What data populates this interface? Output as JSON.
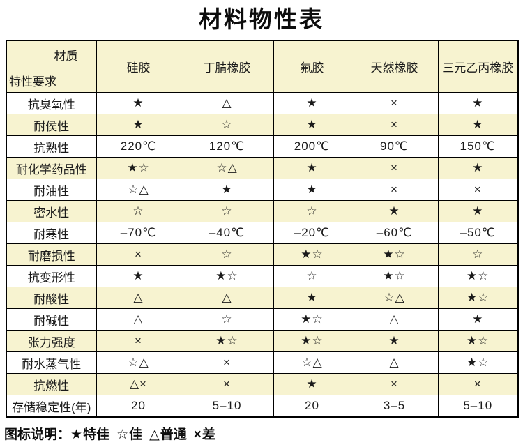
{
  "title": "材料物性表",
  "colors": {
    "row_alt_background": "#f7f3d0",
    "border": "#000000",
    "text": "#1a1a1a"
  },
  "table": {
    "corner": {
      "top_right": "材质",
      "bottom_left": "特性要求"
    },
    "columns": [
      "硅胶",
      "丁腈橡胶",
      "氟胶",
      "天然橡胶",
      "三元乙丙橡胶"
    ],
    "rows": [
      {
        "label": "抗臭氧性",
        "values": [
          "★",
          "△",
          "★",
          "×",
          "★"
        ]
      },
      {
        "label": "耐侯性",
        "values": [
          "★",
          "☆",
          "★",
          "×",
          "★"
        ]
      },
      {
        "label": "抗熟性",
        "values": [
          "220℃",
          "120℃",
          "200℃",
          "90℃",
          "150℃"
        ]
      },
      {
        "label": "耐化学药品性",
        "values": [
          "★☆",
          "☆△",
          "★",
          "×",
          "★"
        ]
      },
      {
        "label": "耐油性",
        "values": [
          "☆△",
          "★",
          "★",
          "×",
          "×"
        ]
      },
      {
        "label": "密水性",
        "values": [
          "☆",
          "☆",
          "☆",
          "★",
          "★"
        ]
      },
      {
        "label": "耐寒性",
        "values": [
          "–70℃",
          "–40℃",
          "–20℃",
          "–60℃",
          "–50℃"
        ]
      },
      {
        "label": "耐磨损性",
        "values": [
          "×",
          "☆",
          "★☆",
          "★☆",
          "☆"
        ]
      },
      {
        "label": "抗变形性",
        "values": [
          "★",
          "★☆",
          "☆",
          "★☆",
          "★☆"
        ]
      },
      {
        "label": "耐酸性",
        "values": [
          "△",
          "△",
          "★",
          "☆△",
          "★☆"
        ]
      },
      {
        "label": "耐碱性",
        "values": [
          "△",
          "☆",
          "★☆",
          "△",
          "★"
        ]
      },
      {
        "label": "张力强度",
        "values": [
          "×",
          "★☆",
          "★☆",
          "★",
          "★☆"
        ]
      },
      {
        "label": "耐水蒸气性",
        "values": [
          "☆△",
          "×",
          "☆△",
          "△",
          "★☆"
        ]
      },
      {
        "label": "抗燃性",
        "values": [
          "△×",
          "×",
          "★",
          "×",
          "×"
        ]
      },
      {
        "label": "存储稳定性(年)",
        "values": [
          "20",
          "5–10",
          "20",
          "3–5",
          "5–10"
        ]
      }
    ]
  },
  "legend": {
    "prefix": "图标说明：",
    "items": [
      {
        "symbol": "★",
        "label": "特佳"
      },
      {
        "symbol": "☆",
        "label": "佳"
      },
      {
        "symbol": "△",
        "label": "普通"
      },
      {
        "symbol": "×",
        "label": "差"
      }
    ]
  }
}
